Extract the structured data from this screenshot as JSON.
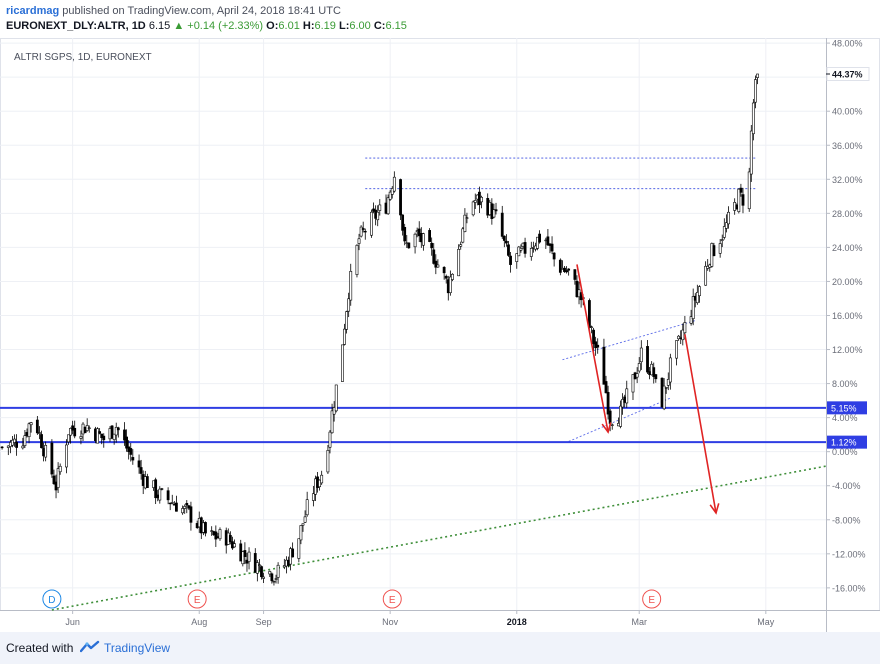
{
  "header": {
    "user": "ricardmag",
    "published": "published on TradingView.com, April 24, 2018 18:41 UTC",
    "symbol": "EURONEXT_DLY:ALTR, 1D",
    "last": "6.15",
    "arrow": "▲",
    "change": "+0.14 (+2.33%)",
    "o_label": "O:",
    "o_value": "6.01",
    "h_label": "H:",
    "h_value": "6.19",
    "l_label": "L:",
    "l_value": "6.00",
    "c_label": "C:",
    "c_value": "6.15"
  },
  "footer": {
    "created_with": "Created with",
    "brand": "TradingView"
  },
  "chart_data": {
    "type": "candlestick",
    "title": "ALTRI SGPS, 1D, EURONEXT",
    "y_unit": "percent change",
    "ylim": [
      -18.6,
      48.6
    ],
    "y_ticks": [
      48,
      44,
      40,
      36,
      32,
      28,
      24,
      20,
      16,
      12,
      8,
      4,
      0,
      -4,
      -8,
      -12,
      -16
    ],
    "y_tick_labels": [
      "48.00%",
      "44.00%",
      "40.00%",
      "36.00%",
      "32.00%",
      "28.00%",
      "24.00%",
      "20.00%",
      "16.00%",
      "12.00%",
      "8.00%",
      "4.00%",
      "0.00%",
      "-4.00%",
      "-8.00%",
      "-12.00%",
      "-16.00%"
    ],
    "x_ticks": [
      {
        "label": "Jun",
        "date": "2017-06-01"
      },
      {
        "label": "Aug",
        "date": "2017-08-01"
      },
      {
        "label": "Sep",
        "date": "2017-09-01"
      },
      {
        "label": "Nov",
        "date": "2017-11-01"
      },
      {
        "label": "2018",
        "date": "2018-01-01",
        "bold": true
      },
      {
        "label": "Mar",
        "date": "2018-03-01"
      },
      {
        "label": "May",
        "date": "2018-05-01"
      }
    ],
    "x_range": [
      "2017-04-27",
      "2018-05-30"
    ],
    "last_value_label": "44.37%",
    "last_value": 44.37,
    "price_path": [
      [
        "2017-04-28",
        0.5
      ],
      [
        "2017-05-08",
        1.5
      ],
      [
        "2017-05-13",
        4.3
      ],
      [
        "2017-05-18",
        0.5
      ],
      [
        "2017-05-24",
        -4.0
      ],
      [
        "2017-05-30",
        2.5
      ],
      [
        "2017-06-08",
        3.0
      ],
      [
        "2017-06-16",
        1.5
      ],
      [
        "2017-06-22",
        3.0
      ],
      [
        "2017-06-28",
        0.0
      ],
      [
        "2017-07-05",
        -3.0
      ],
      [
        "2017-07-12",
        -5.0
      ],
      [
        "2017-07-20",
        -6.0
      ],
      [
        "2017-07-28",
        -7.5
      ],
      [
        "2017-08-05",
        -10.0
      ],
      [
        "2017-08-14",
        -10.0
      ],
      [
        "2017-08-22",
        -12.0
      ],
      [
        "2017-08-30",
        -13.5
      ],
      [
        "2017-09-07",
        -14.5
      ],
      [
        "2017-09-12",
        -13.0
      ],
      [
        "2017-09-18",
        -10.0
      ],
      [
        "2017-09-24",
        -5.0
      ],
      [
        "2017-09-30",
        -2.0
      ],
      [
        "2017-10-04",
        4.5
      ],
      [
        "2017-10-07",
        9.0
      ],
      [
        "2017-10-12",
        19.0
      ],
      [
        "2017-10-17",
        25.0
      ],
      [
        "2017-10-24",
        27.5
      ],
      [
        "2017-10-30",
        29.0
      ],
      [
        "2017-11-04",
        33.5
      ],
      [
        "2017-11-08",
        24.0
      ],
      [
        "2017-11-14",
        25.5
      ],
      [
        "2017-11-22",
        23.0
      ],
      [
        "2017-11-29",
        19.5
      ],
      [
        "2017-12-04",
        24.0
      ],
      [
        "2017-12-10",
        29.5
      ],
      [
        "2017-12-16",
        29.5
      ],
      [
        "2017-12-22",
        27.5
      ],
      [
        "2017-12-29",
        22.0
      ],
      [
        "2018-01-06",
        24.0
      ],
      [
        "2018-01-14",
        25.5
      ],
      [
        "2018-01-20",
        22.0
      ],
      [
        "2018-01-26",
        21.0
      ],
      [
        "2018-02-01",
        18.0
      ],
      [
        "2018-02-07",
        13.0
      ],
      [
        "2018-02-11",
        10.0
      ],
      [
        "2018-02-15",
        4.0
      ],
      [
        "2018-02-20",
        4.5
      ],
      [
        "2018-02-25",
        7.5
      ],
      [
        "2018-03-02",
        11.5
      ],
      [
        "2018-03-08",
        9.0
      ],
      [
        "2018-03-11",
        5.0
      ],
      [
        "2018-03-16",
        10.0
      ],
      [
        "2018-03-22",
        14.0
      ],
      [
        "2018-03-28",
        18.0
      ],
      [
        "2018-04-04",
        23.0
      ],
      [
        "2018-04-11",
        26.0
      ],
      [
        "2018-04-18",
        30.0
      ],
      [
        "2018-04-22",
        29.5
      ],
      [
        "2018-04-23",
        32.5
      ],
      [
        "2018-04-24",
        37.5
      ],
      [
        "2018-04-25",
        41.0
      ],
      [
        "2018-04-27",
        44.37
      ]
    ],
    "horizontal_lines": [
      {
        "value": 5.15,
        "label": "5.15%",
        "color": "#2f3ee3"
      },
      {
        "value": 1.12,
        "label": "1.12%",
        "color": "#2f3ee3"
      }
    ],
    "dotted_levels": [
      {
        "value": 34.5,
        "from": "2017-10-20",
        "to": "2018-04-26",
        "color": "#3b4fe0"
      },
      {
        "value": 30.9,
        "from": "2017-10-20",
        "to": "2018-04-26",
        "color": "#3b4fe0"
      }
    ],
    "channel_lines": [
      {
        "from": [
          "2018-01-23",
          10.8
        ],
        "to": [
          "2018-03-28",
          15.4
        ],
        "color": "#5a6ae8"
      },
      {
        "from": [
          "2018-01-26",
          1.2
        ],
        "to": [
          "2018-03-16",
          6.3
        ],
        "color": "#5a6ae8"
      }
    ],
    "trendline": {
      "from": [
        "2017-05-22",
        -18.6
      ],
      "to": [
        "2018-05-30",
        -1.7
      ],
      "color": "#3f8f3a"
    },
    "arrows": [
      {
        "from": [
          "2018-01-30",
          22.0
        ],
        "to": [
          "2018-02-14",
          2.3
        ],
        "color": "#e02424"
      },
      {
        "from": [
          "2018-03-23",
          13.8
        ],
        "to": [
          "2018-04-07",
          -7.2
        ],
        "color": "#e02424"
      }
    ],
    "event_markers": [
      {
        "letter": "D",
        "date": "2017-05-22",
        "color": "#1e88e5"
      },
      {
        "letter": "E",
        "date": "2017-07-31",
        "color": "#ef5350"
      },
      {
        "letter": "E",
        "date": "2017-11-02",
        "color": "#ef5350"
      },
      {
        "letter": "E",
        "date": "2018-03-07",
        "color": "#ef5350"
      }
    ],
    "colors": {
      "up": "#ffffff",
      "down": "#000000",
      "grid": "#eef0f5",
      "axis_text": "#6a6d78"
    }
  }
}
